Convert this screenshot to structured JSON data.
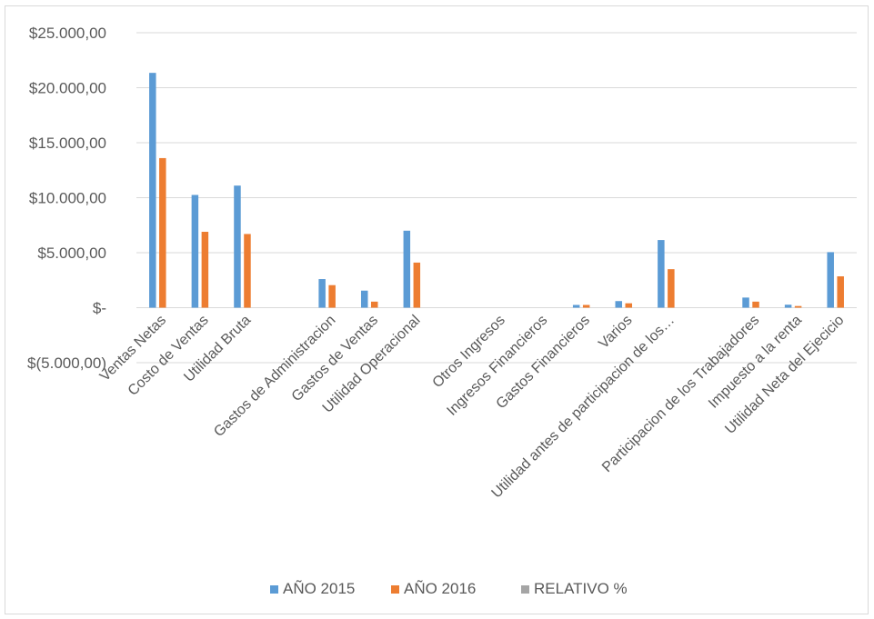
{
  "chart_data": {
    "type": "bar",
    "title": "",
    "xlabel": "",
    "ylabel": "",
    "ylim": [
      -5000,
      25000
    ],
    "y_tick_values": [
      -5000,
      0,
      5000,
      10000,
      15000,
      20000,
      25000
    ],
    "y_tick_labels": [
      "$(5.000,00)",
      "$-",
      "$5.000,00",
      "$10.000,00",
      "$15.000,00",
      "$20.000,00",
      "$25.000,00"
    ],
    "grid": true,
    "legend_position": "bottom",
    "categories": [
      "Ventas Netas",
      "Costo de Ventas",
      "Utilidad Bruta",
      "",
      "Gastos de Administracion",
      "Gastos de Ventas",
      "Utilidad Operacional",
      "",
      "Otros Ingresos",
      "Ingresos Financieros",
      "Gastos Financieros",
      "Varios",
      "Utilidad antes de participacion de los…",
      "",
      "Participacion de los Trabajadores",
      "Impuesto a la renta",
      "Utilidad Neta del Ejecicio"
    ],
    "series": [
      {
        "name": "AÑO 2015",
        "color": "#5b9bd5",
        "values": [
          21350,
          10250,
          11100,
          null,
          2600,
          1550,
          7000,
          null,
          0,
          0,
          250,
          600,
          6150,
          null,
          920,
          270,
          5050
        ]
      },
      {
        "name": "AÑO 2016",
        "color": "#ed7d31",
        "values": [
          13600,
          6900,
          6700,
          null,
          2050,
          550,
          4100,
          null,
          0,
          0,
          250,
          400,
          3500,
          null,
          550,
          150,
          2850
        ]
      },
      {
        "name": "RELATIVO %",
        "color": "#a5a5a5",
        "values": [
          0,
          0,
          0,
          null,
          0,
          0,
          0,
          null,
          0,
          0,
          0,
          0,
          0,
          null,
          0,
          0,
          0
        ]
      }
    ]
  }
}
